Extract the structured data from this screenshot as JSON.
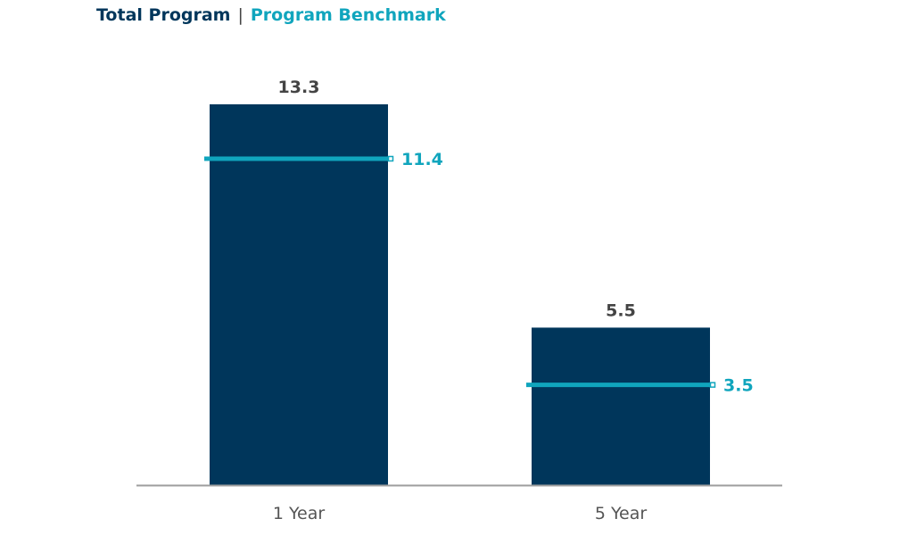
{
  "chart_data": {
    "type": "bar",
    "categories": [
      "1 Year",
      "5 Year"
    ],
    "series": [
      {
        "name": "Total Program",
        "values": [
          13.3,
          5.5
        ]
      },
      {
        "name": "Program Benchmark",
        "values": [
          11.4,
          3.5
        ]
      }
    ],
    "ylim": [
      0,
      15
    ],
    "grid": false,
    "legend_position": "top-left",
    "colors": {
      "bar": "#00365b",
      "benchmark": "#10a5bd",
      "bar_label": "#444444",
      "axis": "#9e9e9e"
    }
  }
}
